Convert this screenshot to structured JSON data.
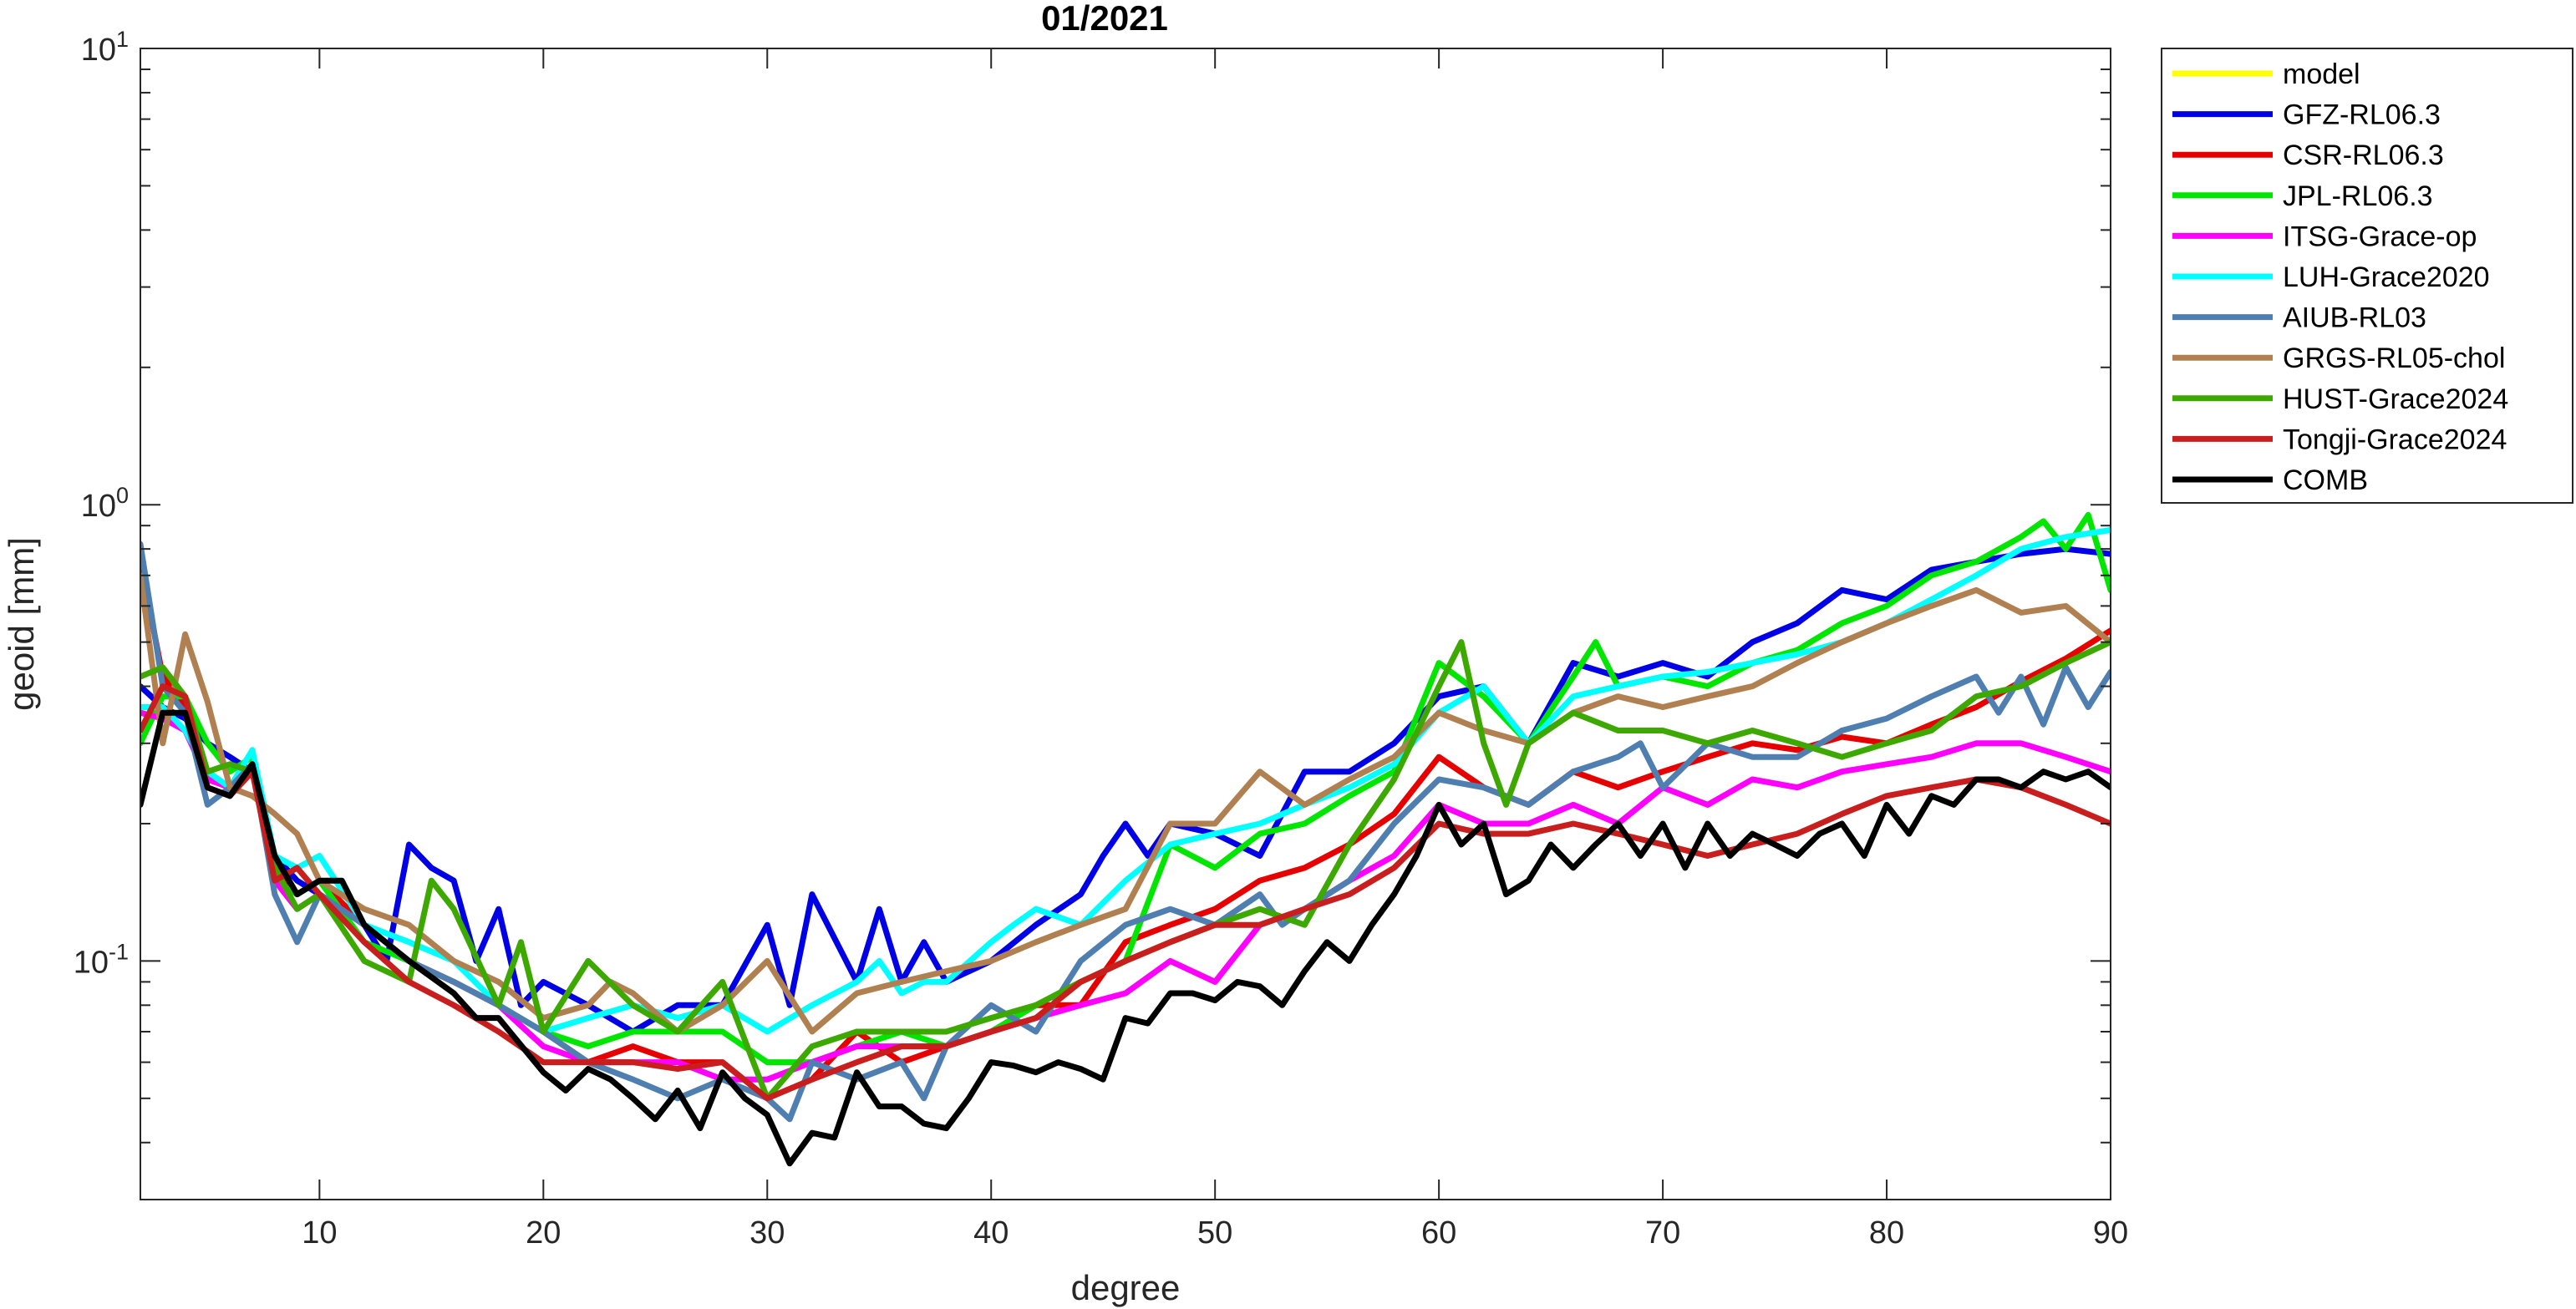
{
  "chart_data": {
    "type": "line",
    "title": "01/2021",
    "xlabel": "degree",
    "ylabel": "geoid [mm]",
    "xlim": [
      2,
      90
    ],
    "ylim": [
      0.03,
      10
    ],
    "yscale": "log",
    "xticks": [
      10,
      20,
      30,
      40,
      50,
      60,
      70,
      80,
      90
    ],
    "xtick_labels": [
      "10",
      "20",
      "30",
      "40",
      "50",
      "60",
      "70",
      "80",
      "90"
    ],
    "yticks": [
      {
        "value": 10,
        "base": "10",
        "exp": "1"
      },
      {
        "value": 1,
        "base": "10",
        "exp": "0"
      },
      {
        "value": 0.1,
        "base": "10",
        "exp": "-1"
      }
    ],
    "grid": false,
    "legend_position": "outside-top-right",
    "series": [
      {
        "name": "model",
        "color": "#ffff00",
        "values": []
      },
      {
        "name": "GFZ-RL06.3",
        "color": "#0000e6",
        "x": [
          2,
          3,
          4,
          5,
          6,
          7,
          8,
          9,
          10,
          11,
          12,
          13,
          14,
          15,
          16,
          17,
          18,
          19,
          20,
          22,
          24,
          26,
          28,
          30,
          31,
          32,
          34,
          35,
          36,
          37,
          38,
          40,
          42,
          44,
          45,
          46,
          47,
          48,
          50,
          52,
          54,
          56,
          58,
          60,
          62,
          64,
          66,
          68,
          70,
          72,
          74,
          76,
          78,
          80,
          82,
          84,
          86,
          88,
          90
        ],
        "values": [
          0.4,
          0.36,
          0.34,
          0.3,
          0.28,
          0.26,
          0.17,
          0.15,
          0.14,
          0.13,
          0.12,
          0.1,
          0.18,
          0.16,
          0.15,
          0.1,
          0.13,
          0.08,
          0.09,
          0.08,
          0.07,
          0.08,
          0.08,
          0.12,
          0.08,
          0.14,
          0.09,
          0.13,
          0.09,
          0.11,
          0.09,
          0.1,
          0.12,
          0.14,
          0.17,
          0.2,
          0.17,
          0.2,
          0.19,
          0.17,
          0.26,
          0.26,
          0.3,
          0.38,
          0.4,
          0.3,
          0.45,
          0.42,
          0.45,
          0.42,
          0.5,
          0.55,
          0.65,
          0.62,
          0.72,
          0.75,
          0.78,
          0.8,
          0.78
        ]
      },
      {
        "name": "CSR-RL06.3",
        "color": "#e60000",
        "x": [
          2,
          3,
          4,
          5,
          6,
          7,
          8,
          9,
          10,
          12,
          14,
          16,
          18,
          20,
          22,
          24,
          26,
          28,
          30,
          32,
          34,
          36,
          38,
          40,
          42,
          44,
          46,
          48,
          50,
          52,
          54,
          56,
          58,
          60,
          62,
          64,
          66,
          68,
          70,
          72,
          74,
          76,
          78,
          80,
          82,
          84,
          86,
          88,
          90
        ],
        "values": [
          0.75,
          0.42,
          0.36,
          0.25,
          0.24,
          0.27,
          0.16,
          0.14,
          0.15,
          0.12,
          0.1,
          0.09,
          0.08,
          0.07,
          0.06,
          0.065,
          0.06,
          0.06,
          0.05,
          0.055,
          0.07,
          0.06,
          0.065,
          0.07,
          0.08,
          0.08,
          0.11,
          0.12,
          0.13,
          0.15,
          0.16,
          0.18,
          0.21,
          0.28,
          0.24,
          0.22,
          0.26,
          0.24,
          0.26,
          0.28,
          0.3,
          0.29,
          0.31,
          0.3,
          0.33,
          0.36,
          0.41,
          0.46,
          0.53
        ]
      },
      {
        "name": "JPL-RL06.3",
        "color": "#00e600",
        "x": [
          2,
          3,
          4,
          5,
          6,
          7,
          8,
          9,
          10,
          12,
          14,
          16,
          18,
          20,
          22,
          24,
          26,
          28,
          30,
          32,
          34,
          36,
          38,
          40,
          42,
          44,
          46,
          48,
          50,
          52,
          54,
          56,
          58,
          60,
          62,
          64,
          66,
          67,
          68,
          70,
          72,
          74,
          76,
          78,
          80,
          82,
          84,
          86,
          87,
          88,
          89,
          90
        ],
        "values": [
          0.3,
          0.38,
          0.38,
          0.3,
          0.26,
          0.28,
          0.15,
          0.14,
          0.15,
          0.11,
          0.1,
          0.09,
          0.08,
          0.07,
          0.065,
          0.07,
          0.07,
          0.07,
          0.06,
          0.06,
          0.065,
          0.07,
          0.065,
          0.07,
          0.08,
          0.09,
          0.1,
          0.18,
          0.16,
          0.19,
          0.2,
          0.23,
          0.26,
          0.45,
          0.38,
          0.3,
          0.42,
          0.5,
          0.4,
          0.42,
          0.4,
          0.45,
          0.48,
          0.55,
          0.6,
          0.7,
          0.75,
          0.85,
          0.92,
          0.8,
          0.95,
          0.65
        ]
      },
      {
        "name": "ITSG-Grace-op",
        "color": "#ff00ff",
        "x": [
          2,
          3,
          4,
          5,
          6,
          7,
          8,
          9,
          10,
          12,
          14,
          16,
          18,
          20,
          22,
          24,
          26,
          28,
          30,
          32,
          34,
          36,
          38,
          40,
          42,
          44,
          46,
          48,
          50,
          52,
          54,
          56,
          58,
          60,
          62,
          64,
          66,
          68,
          70,
          72,
          74,
          76,
          78,
          80,
          82,
          84,
          86,
          88,
          90
        ],
        "values": [
          0.35,
          0.34,
          0.32,
          0.25,
          0.24,
          0.26,
          0.15,
          0.13,
          0.14,
          0.12,
          0.1,
          0.09,
          0.08,
          0.065,
          0.06,
          0.06,
          0.06,
          0.055,
          0.055,
          0.06,
          0.065,
          0.065,
          0.065,
          0.07,
          0.075,
          0.08,
          0.085,
          0.1,
          0.09,
          0.12,
          0.13,
          0.15,
          0.17,
          0.22,
          0.2,
          0.2,
          0.22,
          0.2,
          0.24,
          0.22,
          0.25,
          0.24,
          0.26,
          0.27,
          0.28,
          0.3,
          0.3,
          0.28,
          0.26
        ]
      },
      {
        "name": "LUH-Grace2020",
        "color": "#00ffff",
        "x": [
          2,
          3,
          4,
          5,
          6,
          7,
          8,
          9,
          10,
          12,
          14,
          16,
          18,
          20,
          22,
          24,
          26,
          28,
          30,
          32,
          34,
          35,
          36,
          37,
          38,
          40,
          41,
          42,
          44,
          46,
          48,
          50,
          52,
          54,
          56,
          58,
          60,
          62,
          64,
          66,
          68,
          70,
          72,
          74,
          76,
          78,
          80,
          82,
          84,
          86,
          88,
          90
        ],
        "values": [
          0.36,
          0.36,
          0.32,
          0.26,
          0.24,
          0.29,
          0.17,
          0.16,
          0.17,
          0.12,
          0.11,
          0.1,
          0.08,
          0.07,
          0.075,
          0.08,
          0.075,
          0.08,
          0.07,
          0.08,
          0.09,
          0.1,
          0.085,
          0.09,
          0.09,
          0.11,
          0.12,
          0.13,
          0.12,
          0.15,
          0.18,
          0.19,
          0.2,
          0.22,
          0.24,
          0.27,
          0.35,
          0.4,
          0.3,
          0.38,
          0.4,
          0.42,
          0.43,
          0.45,
          0.47,
          0.5,
          0.55,
          0.62,
          0.7,
          0.8,
          0.85,
          0.88
        ]
      },
      {
        "name": "AIUB-RL03",
        "color": "#4f7fb0",
        "x": [
          2,
          3,
          4,
          5,
          6,
          7,
          8,
          9,
          10,
          12,
          14,
          16,
          18,
          20,
          22,
          24,
          26,
          28,
          30,
          31,
          32,
          34,
          36,
          37,
          38,
          40,
          42,
          44,
          46,
          48,
          50,
          52,
          53,
          54,
          56,
          58,
          60,
          62,
          64,
          66,
          68,
          69,
          70,
          72,
          74,
          76,
          78,
          80,
          82,
          84,
          85,
          86,
          87,
          88,
          89,
          90
        ],
        "values": [
          0.82,
          0.4,
          0.35,
          0.22,
          0.24,
          0.27,
          0.14,
          0.11,
          0.14,
          0.12,
          0.1,
          0.09,
          0.08,
          0.07,
          0.06,
          0.055,
          0.05,
          0.055,
          0.05,
          0.045,
          0.06,
          0.055,
          0.06,
          0.05,
          0.065,
          0.08,
          0.07,
          0.1,
          0.12,
          0.13,
          0.12,
          0.14,
          0.12,
          0.13,
          0.15,
          0.2,
          0.25,
          0.24,
          0.22,
          0.26,
          0.28,
          0.3,
          0.24,
          0.3,
          0.28,
          0.28,
          0.32,
          0.34,
          0.38,
          0.42,
          0.35,
          0.42,
          0.33,
          0.44,
          0.36,
          0.43
        ]
      },
      {
        "name": "GRGS-RL05-chol",
        "color": "#b08050",
        "x": [
          2,
          3,
          4,
          5,
          6,
          7,
          8,
          9,
          10,
          12,
          14,
          16,
          18,
          20,
          22,
          23,
          24,
          26,
          28,
          30,
          32,
          34,
          36,
          38,
          40,
          42,
          44,
          46,
          48,
          50,
          52,
          54,
          56,
          58,
          60,
          62,
          64,
          66,
          68,
          70,
          72,
          74,
          76,
          78,
          80,
          82,
          84,
          86,
          88,
          90
        ],
        "values": [
          0.7,
          0.3,
          0.52,
          0.37,
          0.24,
          0.23,
          0.21,
          0.19,
          0.15,
          0.13,
          0.12,
          0.1,
          0.09,
          0.075,
          0.08,
          0.09,
          0.085,
          0.07,
          0.08,
          0.1,
          0.07,
          0.085,
          0.09,
          0.095,
          0.1,
          0.11,
          0.12,
          0.13,
          0.2,
          0.2,
          0.26,
          0.22,
          0.25,
          0.28,
          0.35,
          0.32,
          0.3,
          0.35,
          0.38,
          0.36,
          0.38,
          0.4,
          0.45,
          0.5,
          0.55,
          0.6,
          0.65,
          0.58,
          0.6,
          0.5
        ]
      },
      {
        "name": "HUST-Grace2024",
        "color": "#3ca800",
        "x": [
          2,
          3,
          4,
          5,
          6,
          7,
          8,
          9,
          10,
          12,
          14,
          15,
          16,
          18,
          19,
          20,
          22,
          24,
          26,
          28,
          30,
          32,
          34,
          36,
          38,
          40,
          42,
          44,
          46,
          48,
          50,
          52,
          54,
          56,
          58,
          60,
          61,
          62,
          63,
          64,
          66,
          68,
          70,
          72,
          74,
          76,
          78,
          80,
          82,
          84,
          86,
          88,
          90
        ],
        "values": [
          0.42,
          0.44,
          0.38,
          0.26,
          0.27,
          0.26,
          0.16,
          0.13,
          0.14,
          0.1,
          0.09,
          0.15,
          0.13,
          0.08,
          0.11,
          0.07,
          0.1,
          0.08,
          0.07,
          0.09,
          0.05,
          0.065,
          0.07,
          0.07,
          0.07,
          0.075,
          0.08,
          0.09,
          0.1,
          0.11,
          0.12,
          0.13,
          0.12,
          0.18,
          0.25,
          0.4,
          0.5,
          0.3,
          0.22,
          0.3,
          0.35,
          0.32,
          0.32,
          0.3,
          0.32,
          0.3,
          0.28,
          0.3,
          0.32,
          0.38,
          0.4,
          0.45,
          0.5
        ]
      },
      {
        "name": "Tongji-Grace2024",
        "color": "#c81e1e",
        "x": [
          2,
          3,
          4,
          5,
          6,
          7,
          8,
          9,
          10,
          12,
          14,
          16,
          18,
          20,
          22,
          24,
          26,
          28,
          30,
          32,
          34,
          36,
          38,
          40,
          42,
          44,
          46,
          48,
          50,
          52,
          54,
          56,
          58,
          60,
          62,
          64,
          66,
          68,
          70,
          72,
          74,
          76,
          78,
          80,
          82,
          84,
          86,
          88,
          90
        ],
        "values": [
          0.32,
          0.4,
          0.38,
          0.24,
          0.23,
          0.26,
          0.15,
          0.16,
          0.14,
          0.11,
          0.09,
          0.08,
          0.07,
          0.06,
          0.06,
          0.06,
          0.058,
          0.06,
          0.05,
          0.055,
          0.06,
          0.065,
          0.065,
          0.07,
          0.075,
          0.09,
          0.1,
          0.11,
          0.12,
          0.12,
          0.13,
          0.14,
          0.16,
          0.2,
          0.19,
          0.19,
          0.2,
          0.19,
          0.18,
          0.17,
          0.18,
          0.19,
          0.21,
          0.23,
          0.24,
          0.25,
          0.24,
          0.22,
          0.2
        ]
      },
      {
        "name": "COMB",
        "color": "#000000",
        "x": [
          2,
          3,
          4,
          5,
          6,
          7,
          8,
          9,
          10,
          11,
          12,
          14,
          16,
          17,
          18,
          20,
          21,
          22,
          23,
          24,
          25,
          26,
          27,
          28,
          29,
          30,
          31,
          32,
          33,
          34,
          35,
          36,
          37,
          38,
          39,
          40,
          41,
          42,
          43,
          44,
          45,
          46,
          47,
          48,
          49,
          50,
          51,
          52,
          53,
          54,
          55,
          56,
          57,
          58,
          59,
          60,
          61,
          62,
          63,
          64,
          65,
          66,
          67,
          68,
          69,
          70,
          71,
          72,
          73,
          74,
          75,
          76,
          77,
          78,
          79,
          80,
          81,
          82,
          83,
          84,
          85,
          86,
          87,
          88,
          89,
          90
        ],
        "values": [
          0.22,
          0.35,
          0.35,
          0.24,
          0.23,
          0.27,
          0.17,
          0.14,
          0.15,
          0.15,
          0.12,
          0.1,
          0.085,
          0.075,
          0.075,
          0.057,
          0.052,
          0.058,
          0.055,
          0.05,
          0.045,
          0.052,
          0.043,
          0.057,
          0.05,
          0.046,
          0.036,
          0.042,
          0.041,
          0.057,
          0.048,
          0.048,
          0.044,
          0.043,
          0.05,
          0.06,
          0.059,
          0.057,
          0.06,
          0.058,
          0.055,
          0.075,
          0.073,
          0.085,
          0.085,
          0.082,
          0.09,
          0.088,
          0.08,
          0.095,
          0.11,
          0.1,
          0.12,
          0.14,
          0.17,
          0.22,
          0.18,
          0.2,
          0.14,
          0.15,
          0.18,
          0.16,
          0.18,
          0.2,
          0.17,
          0.2,
          0.16,
          0.2,
          0.17,
          0.19,
          0.18,
          0.17,
          0.19,
          0.2,
          0.17,
          0.22,
          0.19,
          0.23,
          0.22,
          0.25,
          0.25,
          0.24,
          0.26,
          0.25,
          0.26,
          0.24
        ]
      }
    ]
  }
}
